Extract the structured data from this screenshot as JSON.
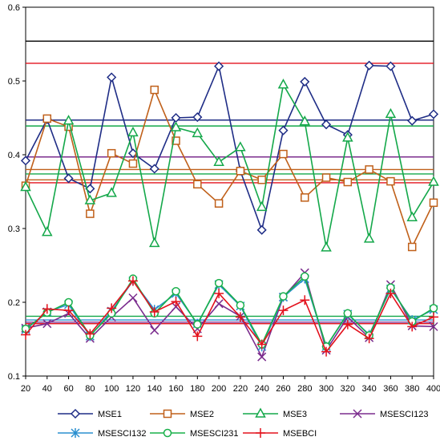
{
  "chart_data": {
    "type": "line",
    "title": "",
    "xlabel": "",
    "ylabel": "",
    "x": [
      20,
      40,
      60,
      80,
      100,
      120,
      140,
      160,
      180,
      200,
      220,
      240,
      260,
      280,
      300,
      320,
      340,
      360,
      380,
      400
    ],
    "ylim": [
      0.1,
      0.6
    ],
    "yticks": [
      "0.1",
      "0.2",
      "0.3",
      "0.4",
      "0.5",
      "0.6"
    ],
    "xticks": [
      "20",
      "40",
      "60",
      "80",
      "100",
      "120",
      "140",
      "160",
      "180",
      "200",
      "220",
      "240",
      "260",
      "280",
      "300",
      "320",
      "340",
      "360",
      "380",
      "400"
    ],
    "grid": false,
    "legend_position": "bottom",
    "series": [
      {
        "name": "MSE1",
        "color": "#1f2d86",
        "marker": "diamond",
        "values": [
          0.392,
          0.448,
          0.368,
          0.354,
          0.505,
          0.402,
          0.381,
          0.45,
          0.451,
          0.52,
          0.378,
          0.298,
          0.433,
          0.499,
          0.441,
          0.427,
          0.521,
          0.52,
          0.446,
          0.455
        ]
      },
      {
        "name": "MSE2",
        "color": "#c0601a",
        "marker": "square",
        "values": [
          0.358,
          0.449,
          0.438,
          0.32,
          0.402,
          0.388,
          0.488,
          0.419,
          0.36,
          0.334,
          0.378,
          0.366,
          0.401,
          0.342,
          0.369,
          0.363,
          0.38,
          0.364,
          0.275,
          0.335
        ]
      },
      {
        "name": "MSE3",
        "color": "#14a84a",
        "marker": "triangle",
        "values": [
          0.356,
          0.295,
          0.446,
          0.338,
          0.348,
          0.43,
          0.28,
          0.437,
          0.429,
          0.39,
          0.41,
          0.329,
          0.495,
          0.445,
          0.274,
          0.423,
          0.286,
          0.455,
          0.315,
          0.363
        ]
      },
      {
        "name": "MSESCI123",
        "color": "#7b2d8e",
        "marker": "x",
        "values": [
          0.165,
          0.171,
          0.185,
          0.151,
          0.18,
          0.206,
          0.162,
          0.194,
          0.164,
          0.198,
          0.181,
          0.126,
          0.207,
          0.24,
          0.135,
          0.18,
          0.152,
          0.224,
          0.168,
          0.167
        ]
      },
      {
        "name": "MSESCI132",
        "color": "#2a8fcf",
        "marker": "star",
        "values": [
          0.163,
          0.187,
          0.197,
          0.154,
          0.188,
          0.229,
          0.19,
          0.212,
          0.171,
          0.224,
          0.195,
          0.14,
          0.207,
          0.232,
          0.14,
          0.184,
          0.156,
          0.218,
          0.176,
          0.19
        ]
      },
      {
        "name": "MSESCI231",
        "color": "#19b04a",
        "marker": "circle",
        "values": [
          0.164,
          0.186,
          0.2,
          0.155,
          0.185,
          0.232,
          0.185,
          0.215,
          0.17,
          0.226,
          0.196,
          0.143,
          0.208,
          0.235,
          0.14,
          0.185,
          0.155,
          0.22,
          0.174,
          0.192
        ]
      },
      {
        "name": "MSEBCI",
        "color": "#e3121d",
        "marker": "plus",
        "values": [
          0.156,
          0.191,
          0.189,
          0.157,
          0.192,
          0.229,
          0.187,
          0.201,
          0.154,
          0.212,
          0.18,
          0.143,
          0.189,
          0.203,
          0.133,
          0.17,
          0.151,
          0.212,
          0.167,
          0.18
        ]
      }
    ],
    "reference_lines": [
      {
        "color": "#000000",
        "value": 0.554
      },
      {
        "color": "#e3121d",
        "value": 0.524
      },
      {
        "color": "#1f2d86",
        "value": 0.447
      },
      {
        "color": "#14a84a",
        "value": 0.439
      },
      {
        "color": "#7b2d8e",
        "value": 0.397
      },
      {
        "color": "#c0601a",
        "value": 0.38
      },
      {
        "color": "#14a84a",
        "value": 0.374
      },
      {
        "color": "#c0601a",
        "value": 0.366
      },
      {
        "color": "#e3121d",
        "value": 0.362
      },
      {
        "color": "#14a84a",
        "value": 0.181
      },
      {
        "color": "#2a8fcf",
        "value": 0.176
      },
      {
        "color": "#7b2d8e",
        "value": 0.173
      },
      {
        "color": "#e3121d",
        "value": 0.171
      }
    ]
  }
}
